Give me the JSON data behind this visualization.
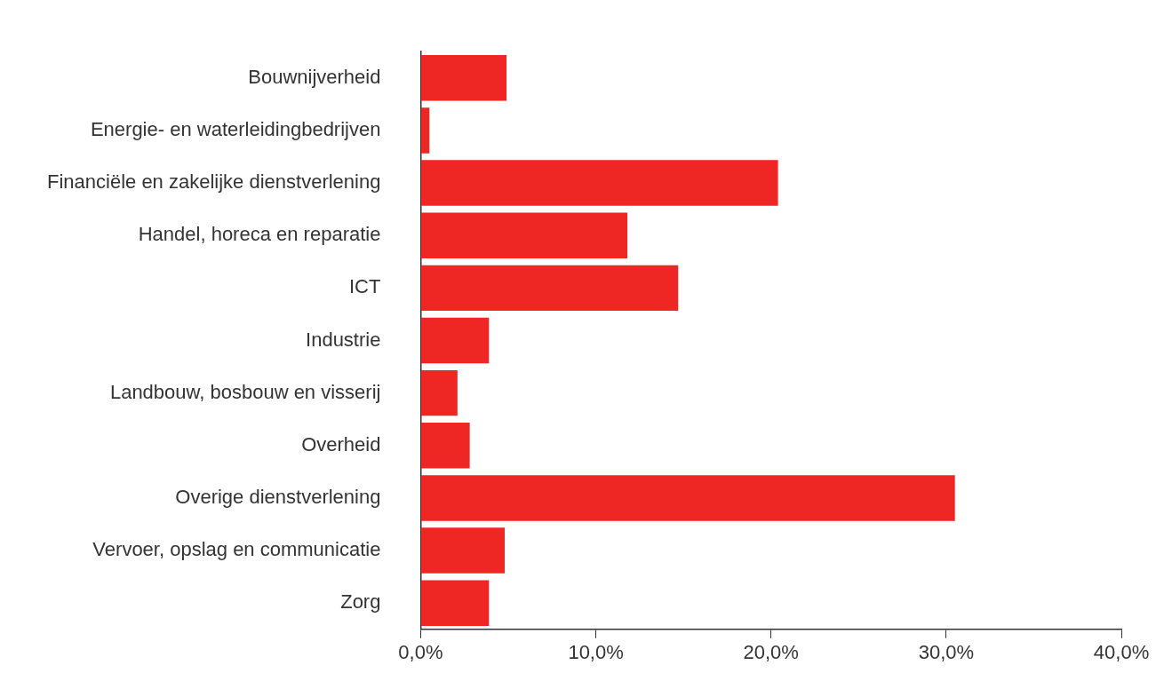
{
  "chart_data": {
    "type": "bar",
    "orientation": "horizontal",
    "categories": [
      "Bouwnijverheid",
      "Energie- en waterleidingbedrijven",
      "Financiële en zakelijke dienstverlening",
      "Handel, horeca en reparatie",
      "ICT",
      "Industrie",
      "Landbouw, bosbouw en visserij",
      "Overheid",
      "Overige dienstverlening",
      "Vervoer, opslag en communicatie",
      "Zorg"
    ],
    "values": [
      4.9,
      0.5,
      20.4,
      11.8,
      14.7,
      3.9,
      2.1,
      2.8,
      30.5,
      4.8,
      3.9
    ],
    "color": "#ee2624",
    "xlim": [
      0,
      40
    ],
    "xticks": [
      {
        "value": 0,
        "label": "0,0%"
      },
      {
        "value": 10,
        "label": "10,0%"
      },
      {
        "value": 20,
        "label": "20,0%"
      },
      {
        "value": 30,
        "label": "30,0%"
      },
      {
        "value": 40,
        "label": "40,0%"
      }
    ],
    "grid": false,
    "legend": false
  }
}
